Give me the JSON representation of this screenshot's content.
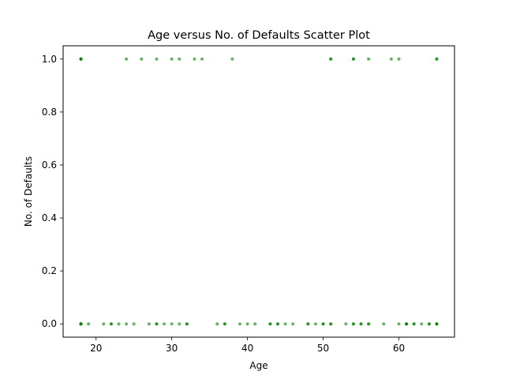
{
  "chart_data": {
    "type": "scatter",
    "title": "Age versus No. of Defaults Scatter Plot",
    "xlabel": "Age",
    "ylabel": "No. of Defaults",
    "xlim": [
      15.65,
      67.35
    ],
    "ylim": [
      -0.05,
      1.05
    ],
    "xticks": [
      20,
      30,
      40,
      50,
      60
    ],
    "yticks": [
      0.0,
      0.2,
      0.4,
      0.6,
      0.8,
      1.0
    ],
    "xtick_labels": [
      "20",
      "30",
      "40",
      "50",
      "60"
    ],
    "ytick_labels": [
      "0.0",
      "0.2",
      "0.4",
      "0.6",
      "0.8",
      "1.0"
    ],
    "grid": false,
    "marker_color": "#008000",
    "marker_alpha": 0.6,
    "series": [
      {
        "x": [
          18,
          18,
          18,
          18,
          24,
          26,
          28,
          30,
          31,
          33,
          34,
          38,
          51,
          51,
          54,
          54,
          56,
          59,
          60,
          65,
          65,
          18,
          18,
          18,
          18,
          18,
          19,
          21,
          22,
          22,
          23,
          24,
          25,
          27,
          28,
          28,
          29,
          30,
          31,
          32,
          32,
          36,
          37,
          37,
          39,
          40,
          41,
          43,
          43,
          44,
          44,
          45,
          46,
          48,
          48,
          49,
          50,
          50,
          51,
          51,
          53,
          54,
          54,
          55,
          55,
          56,
          56,
          58,
          60,
          61,
          61,
          61,
          62,
          62,
          63,
          64,
          64,
          65,
          65,
          65
        ],
        "y": [
          1,
          1,
          1,
          1,
          1,
          1,
          1,
          1,
          1,
          1,
          1,
          1,
          1,
          1,
          1,
          1,
          1,
          1,
          1,
          1,
          1,
          0,
          0,
          0,
          0,
          0,
          0,
          0,
          0,
          0,
          0,
          0,
          0,
          0,
          0,
          0,
          0,
          0,
          0,
          0,
          0,
          0,
          0,
          0,
          0,
          0,
          0,
          0,
          0,
          0,
          0,
          0,
          0,
          0,
          0,
          0,
          0,
          0,
          0,
          0,
          0,
          0,
          0,
          0,
          0,
          0,
          0,
          0,
          0,
          0,
          0,
          0,
          0,
          0,
          0,
          0,
          0,
          0,
          0,
          0
        ]
      }
    ]
  }
}
